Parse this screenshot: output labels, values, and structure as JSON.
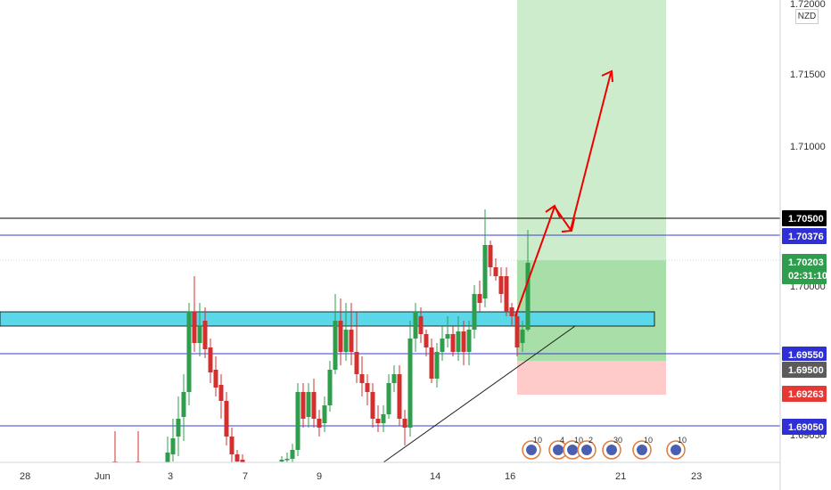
{
  "currency_label": "NZD",
  "price_axis": {
    "ticks": [
      "1.72000",
      "1.71500",
      "1.71000",
      "1.70000",
      "1.69050"
    ]
  },
  "date_axis": {
    "ticks": [
      "28",
      "Jun",
      "3",
      "7",
      "9",
      "14",
      "16",
      "21",
      "23"
    ]
  },
  "price_tags": [
    {
      "id": "tag-1-70500",
      "text": "1.70500",
      "bg": "#000000"
    },
    {
      "id": "tag-1-70376",
      "text": "1.70376",
      "bg": "#2f2fd6"
    },
    {
      "id": "tag-current",
      "text": "1.70203",
      "sub": "02:31:10",
      "bg": "#2e9e4d"
    },
    {
      "id": "tag-1-69550",
      "text": "1.69550",
      "bg": "#2f2fd6"
    },
    {
      "id": "tag-1-69500",
      "text": "1.69500",
      "bg": "#5b5b5b"
    },
    {
      "id": "tag-1-69263",
      "text": "1.69263",
      "bg": "#e53935"
    },
    {
      "id": "tag-1-69050",
      "text": "1.69050",
      "bg": "#2f2fd6"
    }
  ],
  "events": [
    {
      "count": "10"
    },
    {
      "count": "4"
    },
    {
      "count": "10"
    },
    {
      "count": "2"
    },
    {
      "count": "30"
    },
    {
      "count": "10"
    },
    {
      "count": "10"
    }
  ],
  "colors": {
    "bull": "#2e9e4d",
    "bear": "#d32f2f",
    "zone": "#5ad7e8",
    "target": "#b9e8b4",
    "stop": "#ffc9c9",
    "arrow": "#ee0000",
    "level_blue": "#3b3bdc"
  }
}
